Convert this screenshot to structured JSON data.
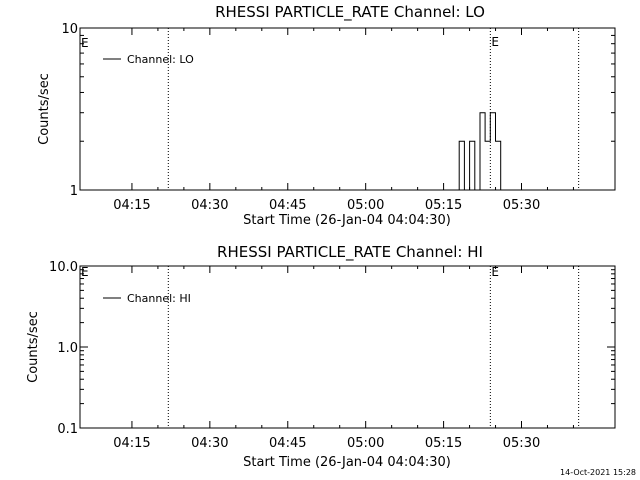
{
  "chart_data": [
    {
      "type": "line",
      "title": "RHESSI PARTICLE_RATE Channel: LO",
      "xlabel": "Start Time (26-Jan-04 04:04:30)",
      "ylabel": "Counts/sec",
      "y_scale": "log",
      "ylim": [
        1,
        10
      ],
      "y_ticks": [
        {
          "value": 1,
          "label": "1"
        },
        {
          "value": 10,
          "label": "10"
        }
      ],
      "xlim": [
        "04:05",
        "05:48"
      ],
      "x_ticks": [
        "04:15",
        "04:30",
        "04:45",
        "05:00",
        "05:15",
        "05:30"
      ],
      "grid": false,
      "legend": {
        "placement": "top-left",
        "entries": [
          "Channel: LO"
        ]
      },
      "series": [
        {
          "name": "Channel: LO",
          "x": [
            "05:18",
            "05:18",
            "05:19",
            "05:19",
            "05:20",
            "05:20",
            "05:21",
            "05:21",
            "05:22",
            "05:22",
            "05:23",
            "05:23",
            "05:24",
            "05:24",
            "05:25",
            "05:25",
            "05:26",
            "05:26"
          ],
          "y": [
            1,
            2,
            2,
            1,
            1,
            2,
            2,
            1,
            1,
            3,
            3,
            2,
            2,
            3,
            3,
            2,
            2,
            1
          ]
        }
      ],
      "markers": [
        {
          "time": "04:22",
          "label": ""
        },
        {
          "time": "05:24",
          "label": "E"
        },
        {
          "time": "05:41",
          "label": ""
        }
      ],
      "edge_label": "E"
    },
    {
      "type": "line",
      "title": "RHESSI PARTICLE_RATE Channel: HI",
      "xlabel": "Start Time (26-Jan-04 04:04:30)",
      "ylabel": "Counts/sec",
      "y_scale": "log",
      "ylim": [
        0.1,
        10
      ],
      "y_ticks": [
        {
          "value": 0.1,
          "label": "0.1"
        },
        {
          "value": 1,
          "label": "1.0"
        },
        {
          "value": 10,
          "label": "10.0"
        }
      ],
      "xlim": [
        "04:05",
        "05:48"
      ],
      "x_ticks": [
        "04:15",
        "04:30",
        "04:45",
        "05:00",
        "05:15",
        "05:30"
      ],
      "grid": false,
      "legend": {
        "placement": "top-left",
        "entries": [
          "Channel: HI"
        ]
      },
      "series": [
        {
          "name": "Channel: HI",
          "x": [],
          "y": []
        }
      ],
      "markers": [
        {
          "time": "04:22",
          "label": ""
        },
        {
          "time": "05:24",
          "label": "E"
        },
        {
          "time": "05:41",
          "label": ""
        }
      ],
      "edge_label": "E"
    }
  ],
  "footer": {
    "timestamp": "14-Oct-2021 15:28"
  }
}
